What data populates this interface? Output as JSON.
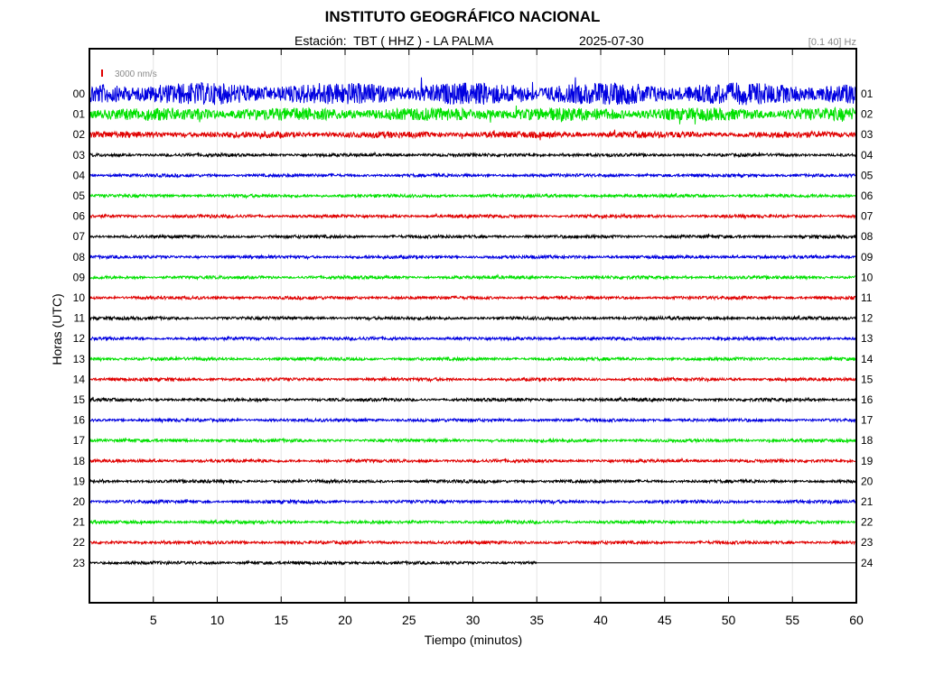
{
  "header": {
    "title": "INSTITUTO GEOGRÁFICO NACIONAL",
    "station": "Estación:  TBT ( HHZ ) - LA PALMA",
    "date": "2025-07-30",
    "filter": "[0.1 40] Hz"
  },
  "scale": {
    "label": "3000 nm/s",
    "color": "#e00000"
  },
  "colors": [
    "#0000e0",
    "#00e000",
    "#e00000",
    "#000000"
  ],
  "chart_data": {
    "type": "line",
    "title": "INSTITUTO GEOGRÁFICO NACIONAL",
    "xlabel": "Tiempo (minutos)",
    "ylabel": "Horas (UTC)",
    "xlim": [
      0,
      60
    ],
    "x_ticks": [
      5,
      10,
      15,
      20,
      25,
      30,
      35,
      40,
      45,
      50,
      55,
      60
    ],
    "left_labels": [
      "00",
      "01",
      "02",
      "03",
      "04",
      "05",
      "06",
      "07",
      "08",
      "09",
      "10",
      "11",
      "12",
      "13",
      "14",
      "15",
      "16",
      "17",
      "18",
      "19",
      "20",
      "21",
      "22",
      "23"
    ],
    "right_labels": [
      "01",
      "02",
      "03",
      "04",
      "05",
      "06",
      "07",
      "08",
      "09",
      "10",
      "11",
      "12",
      "13",
      "14",
      "15",
      "16",
      "17",
      "18",
      "19",
      "20",
      "21",
      "22",
      "23",
      "24"
    ],
    "grid": true,
    "series": [
      {
        "hour": "00",
        "amplitude": 0.55,
        "color": "#0000e0"
      },
      {
        "hour": "01",
        "amplitude": 0.32,
        "color": "#00e000"
      },
      {
        "hour": "02",
        "amplitude": 0.16,
        "color": "#e00000"
      },
      {
        "hour": "03",
        "amplitude": 0.08,
        "color": "#000000"
      },
      {
        "hour": "04",
        "amplitude": 0.08,
        "color": "#0000e0"
      },
      {
        "hour": "05",
        "amplitude": 0.08,
        "color": "#00e000"
      },
      {
        "hour": "06",
        "amplitude": 0.08,
        "color": "#e00000"
      },
      {
        "hour": "07",
        "amplitude": 0.08,
        "color": "#000000"
      },
      {
        "hour": "08",
        "amplitude": 0.08,
        "color": "#0000e0"
      },
      {
        "hour": "09",
        "amplitude": 0.08,
        "color": "#00e000"
      },
      {
        "hour": "10",
        "amplitude": 0.08,
        "color": "#e00000"
      },
      {
        "hour": "11",
        "amplitude": 0.08,
        "color": "#000000"
      },
      {
        "hour": "12",
        "amplitude": 0.08,
        "color": "#0000e0"
      },
      {
        "hour": "13",
        "amplitude": 0.08,
        "color": "#00e000"
      },
      {
        "hour": "14",
        "amplitude": 0.08,
        "color": "#e00000"
      },
      {
        "hour": "15",
        "amplitude": 0.08,
        "color": "#000000"
      },
      {
        "hour": "16",
        "amplitude": 0.08,
        "color": "#0000e0"
      },
      {
        "hour": "17",
        "amplitude": 0.08,
        "color": "#00e000"
      },
      {
        "hour": "18",
        "amplitude": 0.08,
        "color": "#e00000"
      },
      {
        "hour": "19",
        "amplitude": 0.08,
        "color": "#000000"
      },
      {
        "hour": "20",
        "amplitude": 0.08,
        "color": "#0000e0"
      },
      {
        "hour": "21",
        "amplitude": 0.08,
        "color": "#00e000"
      },
      {
        "hour": "22",
        "amplitude": 0.08,
        "color": "#e00000"
      },
      {
        "hour": "23",
        "amplitude": 0.08,
        "color": "#000000",
        "data_until_minute": 35
      }
    ]
  }
}
